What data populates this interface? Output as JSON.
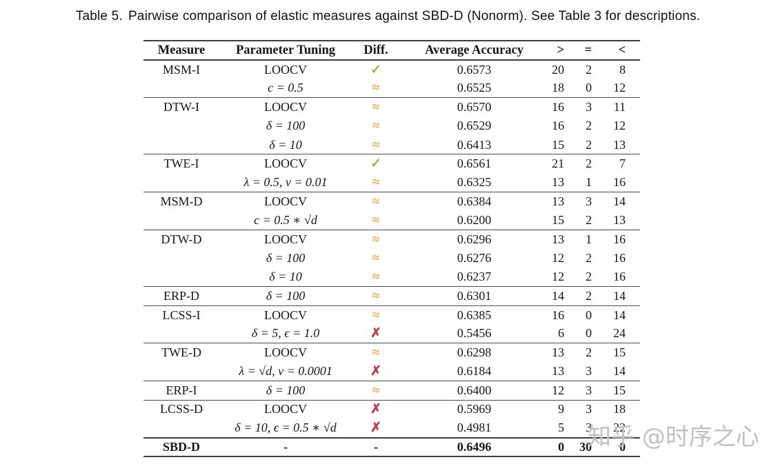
{
  "caption": {
    "label": "Table 5.",
    "text": "Pairwise comparison of elastic measures against SBD-D (Nonorm). See Table 3 for descriptions."
  },
  "table": {
    "columns": [
      "Measure",
      "Parameter Tuning",
      "Diff.",
      "Average Accuracy",
      ">",
      "=",
      "<"
    ],
    "diff_symbols": {
      "check": {
        "glyph": "✓",
        "color": "#96be3a"
      },
      "approx": {
        "glyph": "≈",
        "color": "#e9a83f"
      },
      "cross": {
        "glyph": "✗",
        "color": "#cd3448"
      },
      "dash": {
        "glyph": "-",
        "color": "#1b1b1b"
      }
    },
    "rows": [
      {
        "measure": "MSM-I",
        "parameter": "LOOCV",
        "param_math": false,
        "diff": "check",
        "accuracy": "0.6573",
        "gt": "20",
        "eq": "2",
        "lt": "8",
        "rule_above": false,
        "bold": false
      },
      {
        "measure": "",
        "parameter": "c = 0.5",
        "param_math": true,
        "diff": "approx",
        "accuracy": "0.6525",
        "gt": "18",
        "eq": "0",
        "lt": "12",
        "rule_above": false,
        "bold": false
      },
      {
        "measure": "DTW-I",
        "parameter": "LOOCV",
        "param_math": false,
        "diff": "approx",
        "accuracy": "0.6570",
        "gt": "16",
        "eq": "3",
        "lt": "11",
        "rule_above": true,
        "bold": false
      },
      {
        "measure": "",
        "parameter": "δ = 100",
        "param_math": true,
        "diff": "approx",
        "accuracy": "0.6529",
        "gt": "16",
        "eq": "2",
        "lt": "12",
        "rule_above": false,
        "bold": false
      },
      {
        "measure": "",
        "parameter": "δ = 10",
        "param_math": true,
        "diff": "approx",
        "accuracy": "0.6413",
        "gt": "15",
        "eq": "2",
        "lt": "13",
        "rule_above": false,
        "bold": false
      },
      {
        "measure": "TWE-I",
        "parameter": "LOOCV",
        "param_math": false,
        "diff": "check",
        "accuracy": "0.6561",
        "gt": "21",
        "eq": "2",
        "lt": "7",
        "rule_above": true,
        "bold": false
      },
      {
        "measure": "",
        "parameter": "λ = 0.5, ν = 0.01",
        "param_math": true,
        "diff": "approx",
        "accuracy": "0.6325",
        "gt": "13",
        "eq": "1",
        "lt": "16",
        "rule_above": false,
        "bold": false
      },
      {
        "measure": "MSM-D",
        "parameter": "LOOCV",
        "param_math": false,
        "diff": "approx",
        "accuracy": "0.6384",
        "gt": "13",
        "eq": "3",
        "lt": "14",
        "rule_above": true,
        "bold": false
      },
      {
        "measure": "",
        "parameter": "c = 0.5 ∗ √d",
        "param_math": true,
        "diff": "approx",
        "accuracy": "0.6200",
        "gt": "15",
        "eq": "2",
        "lt": "13",
        "rule_above": false,
        "bold": false
      },
      {
        "measure": "DTW-D",
        "parameter": "LOOCV",
        "param_math": false,
        "diff": "approx",
        "accuracy": "0.6296",
        "gt": "13",
        "eq": "1",
        "lt": "16",
        "rule_above": true,
        "bold": false
      },
      {
        "measure": "",
        "parameter": "δ = 100",
        "param_math": true,
        "diff": "approx",
        "accuracy": "0.6276",
        "gt": "12",
        "eq": "2",
        "lt": "16",
        "rule_above": false,
        "bold": false
      },
      {
        "measure": "",
        "parameter": "δ = 10",
        "param_math": true,
        "diff": "approx",
        "accuracy": "0.6237",
        "gt": "12",
        "eq": "2",
        "lt": "16",
        "rule_above": false,
        "bold": false
      },
      {
        "measure": "ERP-D",
        "parameter": "δ = 100",
        "param_math": true,
        "diff": "approx",
        "accuracy": "0.6301",
        "gt": "14",
        "eq": "2",
        "lt": "14",
        "rule_above": true,
        "bold": false
      },
      {
        "measure": "LCSS-I",
        "parameter": "LOOCV",
        "param_math": false,
        "diff": "approx",
        "accuracy": "0.6385",
        "gt": "16",
        "eq": "0",
        "lt": "14",
        "rule_above": true,
        "bold": false
      },
      {
        "measure": "",
        "parameter": "δ = 5, ϵ = 1.0",
        "param_math": true,
        "diff": "cross",
        "accuracy": "0.5456",
        "gt": "6",
        "eq": "0",
        "lt": "24",
        "rule_above": false,
        "bold": false
      },
      {
        "measure": "TWE-D",
        "parameter": "LOOCV",
        "param_math": false,
        "diff": "approx",
        "accuracy": "0.6298",
        "gt": "13",
        "eq": "2",
        "lt": "15",
        "rule_above": true,
        "bold": false
      },
      {
        "measure": "",
        "parameter": "λ = √d, ν = 0.0001",
        "param_math": true,
        "diff": "cross",
        "accuracy": "0.6184",
        "gt": "13",
        "eq": "3",
        "lt": "14",
        "rule_above": false,
        "bold": false
      },
      {
        "measure": "ERP-I",
        "parameter": "δ = 100",
        "param_math": true,
        "diff": "approx",
        "accuracy": "0.6400",
        "gt": "12",
        "eq": "3",
        "lt": "15",
        "rule_above": true,
        "bold": false
      },
      {
        "measure": "LCSS-D",
        "parameter": "LOOCV",
        "param_math": false,
        "diff": "cross",
        "accuracy": "0.5969",
        "gt": "9",
        "eq": "3",
        "lt": "18",
        "rule_above": true,
        "bold": false
      },
      {
        "measure": "",
        "parameter": "δ = 10, ϵ = 0.5 ∗ √d",
        "param_math": true,
        "diff": "cross",
        "accuracy": "0.4981",
        "gt": "5",
        "eq": "3",
        "lt": "22",
        "rule_above": false,
        "bold": false
      },
      {
        "measure": "SBD-D",
        "parameter": "-",
        "param_math": false,
        "diff": "dash",
        "accuracy": "0.6496",
        "gt": "0",
        "eq": "30",
        "lt": "0",
        "rule_above": true,
        "bold": true
      }
    ]
  },
  "watermark": {
    "text": "知乎 @时序之心",
    "color": "#b2b2b2"
  }
}
